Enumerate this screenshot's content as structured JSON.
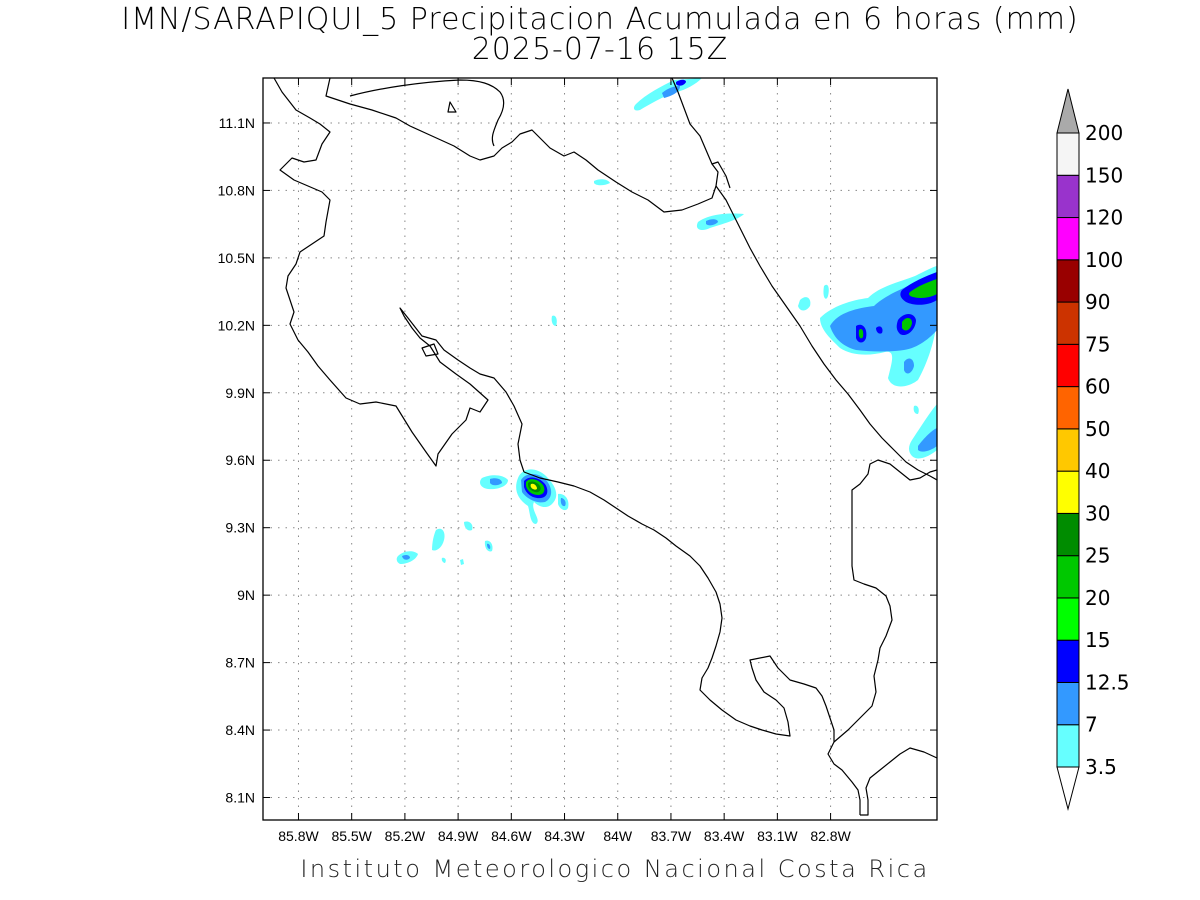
{
  "title": "IMN/SARAPIQUI_5 Precipitacion Acumulada en 6 horas (mm)",
  "subtitle": "2025-07-16 15Z",
  "footer": "Instituto Meteorologico Nacional Costa Rica",
  "map": {
    "lon_range": [
      -86.0,
      -82.2
    ],
    "lat_range": [
      8.0,
      11.3
    ],
    "lon_ticks": [
      {
        "value": -85.8,
        "label": "85.8W"
      },
      {
        "value": -85.5,
        "label": "85.5W"
      },
      {
        "value": -85.2,
        "label": "85.2W"
      },
      {
        "value": -84.9,
        "label": "84.9W"
      },
      {
        "value": -84.6,
        "label": "84.6W"
      },
      {
        "value": -84.3,
        "label": "84.3W"
      },
      {
        "value": -84.0,
        "label": "84W"
      },
      {
        "value": -83.7,
        "label": "83.7W"
      },
      {
        "value": -83.4,
        "label": "83.4W"
      },
      {
        "value": -83.1,
        "label": "83.1W"
      },
      {
        "value": -82.8,
        "label": "82.8W"
      }
    ],
    "lat_ticks": [
      {
        "value": 11.1,
        "label": "11.1N"
      },
      {
        "value": 10.8,
        "label": "10.8N"
      },
      {
        "value": 10.5,
        "label": "10.5N"
      },
      {
        "value": 10.2,
        "label": "10.2N"
      },
      {
        "value": 9.9,
        "label": "9.9N"
      },
      {
        "value": 9.6,
        "label": "9.6N"
      },
      {
        "value": 9.3,
        "label": "9.3N"
      },
      {
        "value": 9.0,
        "label": "9N"
      },
      {
        "value": 8.7,
        "label": "8.7N"
      },
      {
        "value": 8.4,
        "label": "8.4N"
      },
      {
        "value": 8.1,
        "label": "8.1N"
      }
    ],
    "grid": true
  },
  "colorbar": {
    "levels": [
      {
        "label": "3.5",
        "color": "#66ffff"
      },
      {
        "label": "7",
        "color": "#3399ff"
      },
      {
        "label": "12.5",
        "color": "#0000ff"
      },
      {
        "label": "15",
        "color": "#00ff00"
      },
      {
        "label": "20",
        "color": "#00c800"
      },
      {
        "label": "25",
        "color": "#008c00"
      },
      {
        "label": "30",
        "color": "#ffff00"
      },
      {
        "label": "40",
        "color": "#ffc800"
      },
      {
        "label": "50",
        "color": "#ff6400"
      },
      {
        "label": "60",
        "color": "#ff0000"
      },
      {
        "label": "75",
        "color": "#cc3300"
      },
      {
        "label": "90",
        "color": "#990000"
      },
      {
        "label": "100",
        "color": "#ff00ff"
      },
      {
        "label": "120",
        "color": "#9933cc"
      },
      {
        "label": "150",
        "color": "#f5f5f5"
      },
      {
        "label": "200",
        "color": "#aaaaaa"
      }
    ]
  },
  "precip_areas": [
    {
      "lon": -84.6,
      "lat": 9.48,
      "max_mm": 30
    },
    {
      "lon": -84.46,
      "lat": 9.41,
      "max_mm": 7
    },
    {
      "lon": -84.84,
      "lat": 9.51,
      "max_mm": 7
    },
    {
      "lon": -84.84,
      "lat": 9.22,
      "max_mm": 7
    },
    {
      "lon": -85.24,
      "lat": 9.16,
      "max_mm": 7
    },
    {
      "lon": -82.74,
      "lat": 10.2,
      "max_mm": 20
    },
    {
      "lon": -82.92,
      "lat": 10.17,
      "max_mm": 20
    },
    {
      "lon": -82.2,
      "lat": 10.33,
      "max_mm": 20
    },
    {
      "lon": -82.5,
      "lat": 9.68,
      "max_mm": 7
    },
    {
      "lon": -83.8,
      "lat": 11.27,
      "max_mm": 12.5
    },
    {
      "lon": -83.69,
      "lat": 10.66,
      "max_mm": 7
    },
    {
      "lon": -84.22,
      "lat": 10.85,
      "max_mm": 3.5
    }
  ]
}
